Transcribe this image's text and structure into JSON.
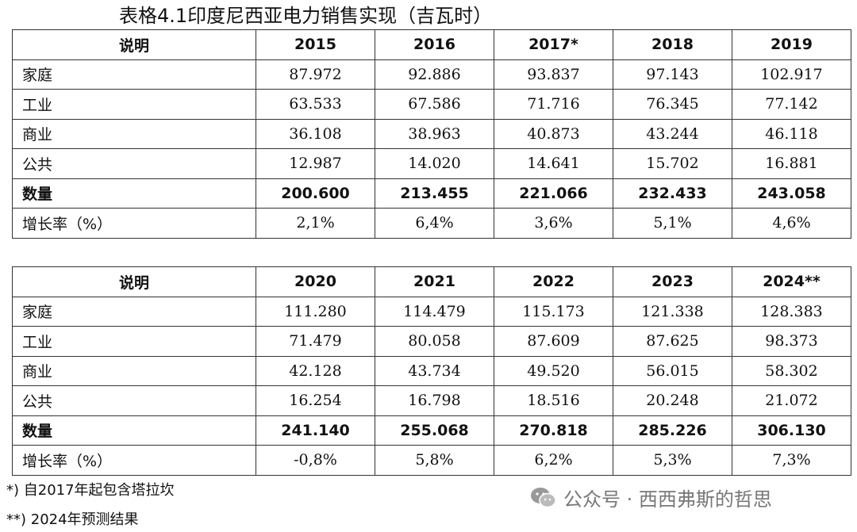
{
  "title": "表格4.1印度尼西亚电力销售实现（吉瓦时）",
  "tables": [
    {
      "headers": [
        "说明",
        "2015",
        "2016",
        "2017*",
        "2018",
        "2019"
      ],
      "rows": [
        [
          "家庭",
          "87.972",
          "92.886",
          "93.837",
          "97.143",
          "102.917"
        ],
        [
          "工业",
          "63.533",
          "67.586",
          "71.716",
          "76.345",
          "77.142"
        ],
        [
          "商业",
          "36.108",
          "38.963",
          "40.873",
          "43.244",
          "46.118"
        ],
        [
          "公共",
          "12.987",
          "14.020",
          "14.641",
          "15.702",
          "16.881"
        ],
        [
          "数量",
          "200.600",
          "213.455",
          "221.066",
          "232.433",
          "243.058"
        ],
        [
          "增长率（%）",
          "2,1%",
          "6,4%",
          "3,6%",
          "5,1%",
          "4,6%"
        ]
      ]
    },
    {
      "headers": [
        "说明",
        "2020",
        "2021",
        "2022",
        "2023",
        "2024**"
      ],
      "rows": [
        [
          "家庭",
          "111.280",
          "114.479",
          "115.173",
          "121.338",
          "128.383"
        ],
        [
          "工业",
          "71.479",
          "80.058",
          "87.609",
          "87.625",
          "98.373"
        ],
        [
          "商业",
          "42.128",
          "43.734",
          "49.520",
          "56.015",
          "58.302"
        ],
        [
          "公共",
          "16.254",
          "16.798",
          "18.516",
          "20.248",
          "21.072"
        ],
        [
          "数量",
          "241.140",
          "255.068",
          "270.818",
          "285.226",
          "306.130"
        ],
        [
          "增长率（%）",
          "-0,8%",
          "5,8%",
          "6,2%",
          "5,3%",
          "7,3%"
        ]
      ]
    }
  ],
  "notes": [
    "*) 自2017年起包含塔拉坎",
    "**) 2024年预测结果"
  ],
  "watermark": {
    "text": "公众号 · 西西弗斯的哲思",
    "icon": "wechat-icon"
  }
}
